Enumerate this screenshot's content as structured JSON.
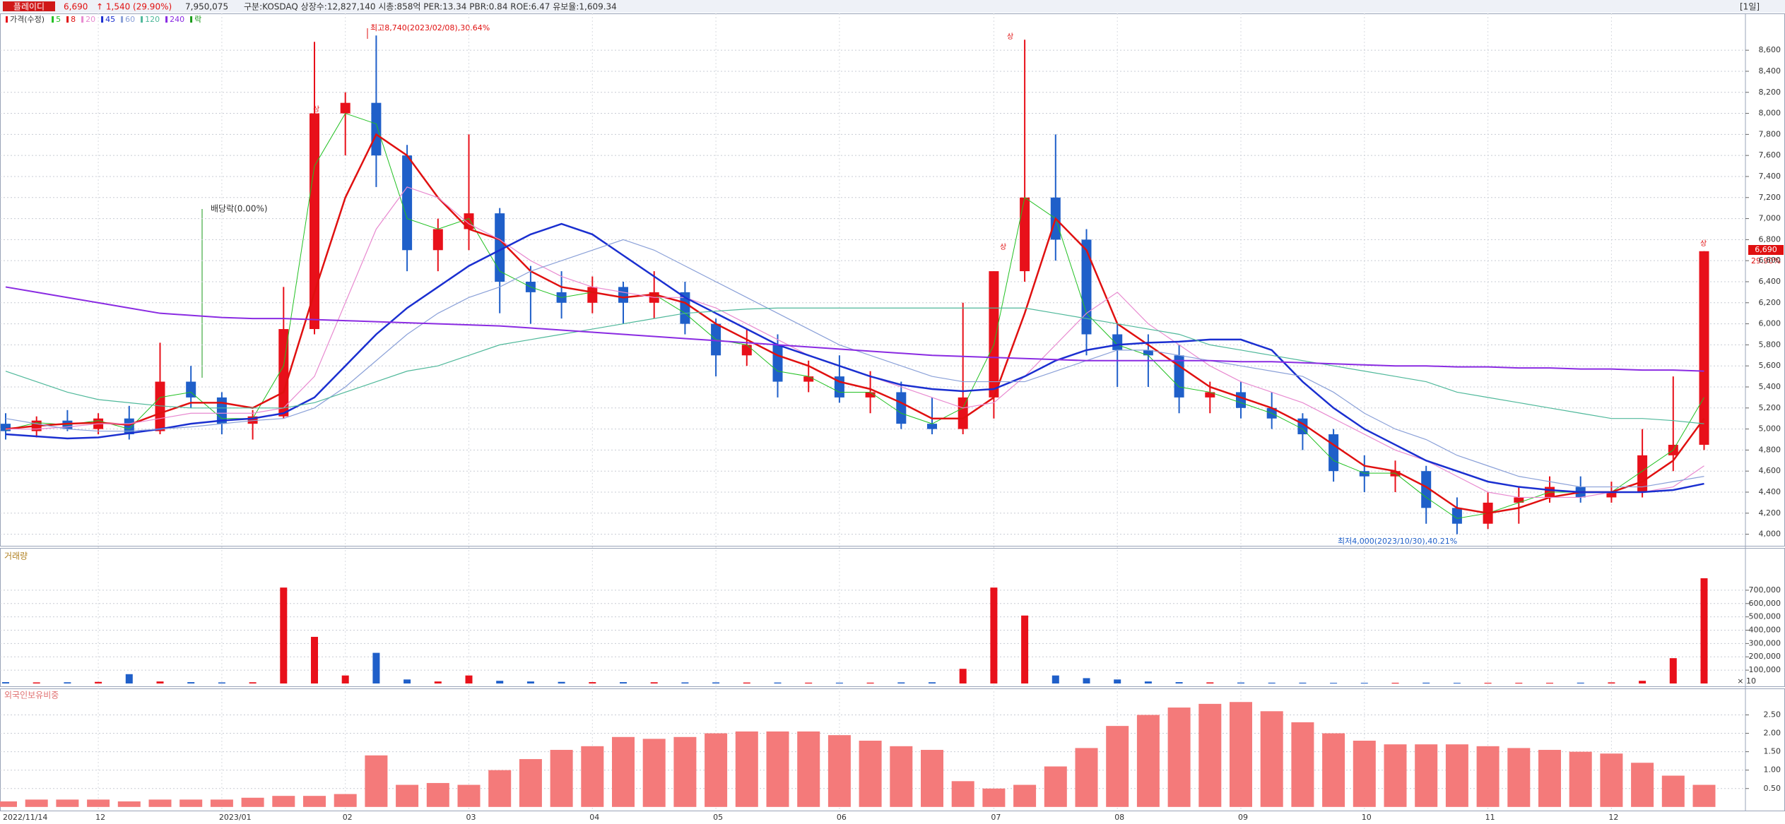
{
  "header": {
    "name": "플레이디",
    "price": "6,690",
    "change": "↑ 1,540 (29.90%)",
    "volume": "7,950,075",
    "info": "구분:KOSDAQ 상장수:12,827,140 시총:858억 PER:13.34 PBR:0.84 ROE:6.47 유보율:1,609.34",
    "period": "[1일]"
  },
  "annotations": {
    "high": "최고8,740(2023/02/08),30.64%",
    "dividend": "배당락(0.00%)",
    "low": "최저4,000(2023/10/30),40.21%",
    "limit_up": "상"
  },
  "chart_data": [
    {
      "type": "candlestick",
      "title": "가격(수정)",
      "lock_label": "락",
      "lock_color": "#1a9a1a",
      "up_color": "#e8101a",
      "down_color": "#1f5fc9",
      "categories": [
        "2022/11/14",
        null,
        null,
        "12",
        null,
        null,
        null,
        "2023/01",
        null,
        null,
        null,
        "02",
        null,
        null,
        null,
        "03",
        null,
        null,
        null,
        "04",
        null,
        null,
        null,
        "05",
        null,
        null,
        null,
        "06",
        null,
        null,
        null,
        null,
        "07",
        null,
        null,
        null,
        "08",
        null,
        null,
        null,
        "09",
        null,
        null,
        null,
        "10",
        null,
        null,
        null,
        "11",
        null,
        null,
        null,
        "12",
        null,
        null,
        null
      ],
      "open": [
        5050,
        4980,
        5080,
        5000,
        5100,
        4980,
        5450,
        5300,
        5050,
        5120,
        5950,
        8000,
        8100,
        7600,
        6700,
        6900,
        7050,
        6400,
        6300,
        6200,
        6350,
        6200,
        6300,
        6000,
        5700,
        5800,
        5450,
        5500,
        5300,
        5350,
        5050,
        5000,
        5300,
        6500,
        7200,
        6800,
        5900,
        5750,
        5700,
        5300,
        5350,
        5200,
        5100,
        4950,
        4600,
        4550,
        4600,
        4250,
        4100,
        4300,
        4350,
        4450,
        4350,
        4400,
        4750,
        4850
      ],
      "high": [
        5150,
        5120,
        5180,
        5150,
        5220,
        5820,
        5600,
        5350,
        5180,
        6350,
        8680,
        8200,
        8740,
        7700,
        7000,
        7800,
        7100,
        6550,
        6500,
        6450,
        6400,
        6500,
        6400,
        6050,
        5950,
        5900,
        5650,
        5700,
        5550,
        5450,
        5300,
        6200,
        6500,
        8700,
        7800,
        6900,
        6000,
        5900,
        5800,
        5450,
        5450,
        5350,
        5150,
        5000,
        4750,
        4700,
        4650,
        4350,
        4400,
        4450,
        4550,
        4550,
        4500,
        5000,
        5500,
        6690
      ],
      "low": [
        4900,
        4920,
        4980,
        4950,
        4900,
        4950,
        5200,
        4950,
        4900,
        5100,
        5900,
        7600,
        7300,
        6500,
        6500,
        6700,
        6100,
        6000,
        6050,
        6100,
        6000,
        6050,
        5900,
        5500,
        5600,
        5300,
        5350,
        5250,
        5150,
        5000,
        4950,
        4950,
        5100,
        6400,
        6600,
        5700,
        5400,
        5400,
        5150,
        5150,
        5100,
        5000,
        4800,
        4500,
        4400,
        4400,
        4100,
        4000,
        4050,
        4100,
        4300,
        4300,
        4300,
        4350,
        4600,
        4800
      ],
      "close": [
        4980,
        5080,
        5000,
        5100,
        4950,
        5450,
        5300,
        5050,
        5120,
        5950,
        8000,
        8100,
        7600,
        6700,
        6900,
        7050,
        6400,
        6300,
        6200,
        6350,
        6200,
        6300,
        6000,
        5700,
        5800,
        5450,
        5500,
        5300,
        5350,
        5050,
        5000,
        5300,
        6500,
        7200,
        6800,
        5900,
        5750,
        5700,
        5300,
        5350,
        5200,
        5100,
        4950,
        4600,
        4550,
        4600,
        4250,
        4100,
        4300,
        4350,
        4450,
        4350,
        4400,
        4750,
        4850,
        6690
      ],
      "series": [
        {
          "name": "5",
          "color": "#22c022",
          "width": 1,
          "values": [
            4990,
            5060,
            5040,
            5080,
            5000,
            5300,
            5350,
            5100,
            5100,
            5600,
            7500,
            8000,
            7900,
            7000,
            6900,
            7000,
            6500,
            6350,
            6250,
            6300,
            6250,
            6280,
            6100,
            5850,
            5800,
            5550,
            5500,
            5350,
            5350,
            5150,
            5050,
            5200,
            5800,
            7200,
            7000,
            6100,
            5800,
            5700,
            5400,
            5350,
            5250,
            5150,
            5000,
            4700,
            4580,
            4580,
            4350,
            4150,
            4200,
            4300,
            4400,
            4400,
            4400,
            4600,
            4800,
            5300
          ]
        },
        {
          "name": "8",
          "color": "#e01010",
          "width": 2.5,
          "values": [
            5000,
            5030,
            5050,
            5060,
            5040,
            5150,
            5250,
            5250,
            5200,
            5350,
            6300,
            7200,
            7800,
            7600,
            7200,
            6900,
            6800,
            6500,
            6350,
            6300,
            6250,
            6280,
            6200,
            6000,
            5850,
            5700,
            5600,
            5450,
            5380,
            5250,
            5100,
            5100,
            5300,
            6100,
            7000,
            6700,
            6000,
            5800,
            5600,
            5400,
            5300,
            5200,
            5050,
            4850,
            4650,
            4600,
            4450,
            4250,
            4200,
            4250,
            4350,
            4400,
            4400,
            4500,
            4700,
            5100
          ]
        },
        {
          "name": "20",
          "color": "#e88ad0",
          "width": 1.2,
          "values": [
            5000,
            5000,
            5020,
            5050,
            5050,
            5100,
            5150,
            5150,
            5150,
            5200,
            5500,
            6200,
            6900,
            7300,
            7200,
            6950,
            6800,
            6600,
            6450,
            6350,
            6300,
            6250,
            6250,
            6150,
            6000,
            5850,
            5700,
            5600,
            5500,
            5400,
            5300,
            5200,
            5250,
            5500,
            5800,
            6100,
            6300,
            6000,
            5800,
            5600,
            5450,
            5350,
            5250,
            5100,
            4950,
            4800,
            4700,
            4550,
            4400,
            4350,
            4350,
            4350,
            4400,
            4400,
            4450,
            4650
          ]
        },
        {
          "name": "45",
          "color": "#1a2fd0",
          "width": 2.5,
          "values": [
            4950,
            4930,
            4910,
            4920,
            4960,
            5000,
            5050,
            5080,
            5100,
            5150,
            5300,
            5600,
            5900,
            6150,
            6350,
            6550,
            6700,
            6850,
            6950,
            6850,
            6650,
            6450,
            6250,
            6100,
            5950,
            5800,
            5700,
            5600,
            5500,
            5420,
            5380,
            5360,
            5380,
            5500,
            5650,
            5750,
            5800,
            5820,
            5830,
            5850,
            5850,
            5750,
            5450,
            5200,
            5000,
            4850,
            4700,
            4600,
            4500,
            4450,
            4420,
            4400,
            4400,
            4400,
            4420,
            4480
          ]
        },
        {
          "name": "60",
          "color": "#8aa0d8",
          "width": 1.2,
          "values": [
            5100,
            5050,
            5000,
            4980,
            4980,
            5000,
            5020,
            5050,
            5080,
            5100,
            5200,
            5400,
            5650,
            5900,
            6100,
            6250,
            6350,
            6500,
            6600,
            6700,
            6800,
            6700,
            6550,
            6400,
            6250,
            6100,
            5950,
            5800,
            5700,
            5600,
            5500,
            5450,
            5450,
            5450,
            5550,
            5650,
            5750,
            5750,
            5700,
            5650,
            5600,
            5550,
            5500,
            5350,
            5150,
            5000,
            4900,
            4750,
            4650,
            4550,
            4500,
            4450,
            4450,
            4450,
            4500,
            4550
          ]
        },
        {
          "name": "120",
          "color": "#4fb89a",
          "width": 1.2,
          "values": [
            5550,
            5450,
            5350,
            5280,
            5250,
            5220,
            5200,
            5200,
            5200,
            5200,
            5250,
            5350,
            5450,
            5550,
            5600,
            5700,
            5800,
            5850,
            5900,
            5950,
            6000,
            6050,
            6100,
            6120,
            6140,
            6150,
            6150,
            6150,
            6150,
            6150,
            6150,
            6150,
            6150,
            6150,
            6100,
            6050,
            6000,
            5950,
            5900,
            5800,
            5750,
            5700,
            5650,
            5600,
            5550,
            5500,
            5450,
            5350,
            5300,
            5250,
            5200,
            5150,
            5100,
            5100,
            5080,
            5050
          ]
        },
        {
          "name": "240",
          "color": "#8a2be2",
          "width": 2,
          "values": [
            6350,
            6300,
            6250,
            6200,
            6150,
            6100,
            6080,
            6060,
            6050,
            6050,
            6040,
            6030,
            6020,
            6010,
            6000,
            5990,
            5980,
            5960,
            5940,
            5920,
            5900,
            5880,
            5860,
            5840,
            5820,
            5800,
            5780,
            5760,
            5740,
            5720,
            5700,
            5690,
            5680,
            5670,
            5660,
            5650,
            5650,
            5650,
            5650,
            5650,
            5640,
            5640,
            5630,
            5620,
            5610,
            5600,
            5600,
            5590,
            5590,
            5580,
            5580,
            5570,
            5570,
            5560,
            5560,
            5550
          ]
        }
      ],
      "ylim": [
        3890,
        8950
      ],
      "yticks": [
        {
          "value": 4000,
          "label": "4,000"
        },
        {
          "value": 4200,
          "label": "4,200"
        },
        {
          "value": 4400,
          "label": "4,400"
        },
        {
          "value": 4600,
          "label": "4,600"
        },
        {
          "value": 4800,
          "label": "4,800"
        },
        {
          "value": 5000,
          "label": "5,000"
        },
        {
          "value": 5200,
          "label": "5,200"
        },
        {
          "value": 5400,
          "label": "5,400"
        },
        {
          "value": 5600,
          "label": "5,600"
        },
        {
          "value": 5800,
          "label": "5,800"
        },
        {
          "value": 6000,
          "label": "6,000"
        },
        {
          "value": 6200,
          "label": "6,200"
        },
        {
          "value": 6400,
          "label": "6,400"
        },
        {
          "value": 6600,
          "label": "6,600"
        },
        {
          "value": 6800,
          "label": "6,800"
        },
        {
          "value": 7000,
          "label": "7,000"
        },
        {
          "value": 7200,
          "label": "7,200"
        },
        {
          "value": 7400,
          "label": "7,400"
        },
        {
          "value": 7600,
          "label": "7,600"
        },
        {
          "value": 7800,
          "label": "7,800"
        },
        {
          "value": 8000,
          "label": "8,000"
        },
        {
          "value": 8200,
          "label": "8,200"
        },
        {
          "value": 8400,
          "label": "8,400"
        },
        {
          "value": 8600,
          "label": "8,600"
        }
      ],
      "grid": true,
      "last_price_label": "6,690",
      "last_change_label": "29.90%"
    },
    {
      "type": "bar",
      "title": "거래량",
      "unit_label": "× 10",
      "values": [
        10000,
        8000,
        9000,
        12000,
        70000,
        15000,
        10000,
        8000,
        9000,
        720000,
        350000,
        60000,
        230000,
        30000,
        15000,
        60000,
        20000,
        15000,
        12000,
        10000,
        10000,
        9000,
        8000,
        8000,
        7000,
        7000,
        6000,
        6000,
        6000,
        8000,
        9000,
        110000,
        720000,
        510000,
        60000,
        40000,
        30000,
        15000,
        10000,
        8000,
        7000,
        6000,
        6000,
        5000,
        5000,
        5000,
        6000,
        5000,
        5000,
        5000,
        5000,
        6000,
        8000,
        20000,
        190000,
        790000
      ],
      "ylim": [
        -16000,
        1007000
      ],
      "yticks": [
        {
          "value": 100000,
          "label": "100,000"
        },
        {
          "value": 200000,
          "label": "200,000"
        },
        {
          "value": 300000,
          "label": "300,000"
        },
        {
          "value": 400000,
          "label": "400,000"
        },
        {
          "value": 500000,
          "label": "500,000"
        },
        {
          "value": 600000,
          "label": "600,000"
        },
        {
          "value": 700000,
          "label": "700,000"
        }
      ],
      "grid": true
    },
    {
      "type": "bar",
      "title": "외국인보유비중",
      "color": "#f47a7a",
      "values": [
        0.15,
        0.2,
        0.2,
        0.2,
        0.15,
        0.2,
        0.2,
        0.2,
        0.25,
        0.3,
        0.3,
        0.35,
        1.4,
        0.6,
        0.65,
        0.6,
        1.0,
        1.3,
        1.55,
        1.65,
        1.9,
        1.85,
        1.9,
        2.0,
        2.05,
        2.05,
        2.05,
        1.95,
        1.8,
        1.65,
        1.55,
        0.7,
        0.5,
        0.6,
        1.1,
        1.6,
        2.2,
        2.5,
        2.7,
        2.8,
        2.85,
        2.6,
        2.3,
        2.0,
        1.8,
        1.7,
        1.7,
        1.7,
        1.65,
        1.6,
        1.55,
        1.5,
        1.45,
        1.2,
        0.85,
        0.6
      ],
      "ylim": [
        -0.08,
        3.2
      ],
      "yticks": [
        {
          "value": 0.5,
          "label": "0.50"
        },
        {
          "value": 1,
          "label": "1.00"
        },
        {
          "value": 1.5,
          "label": "1.50"
        },
        {
          "value": 2,
          "label": "2.00"
        },
        {
          "value": 2.5,
          "label": "2.50"
        }
      ],
      "grid": true
    }
  ]
}
